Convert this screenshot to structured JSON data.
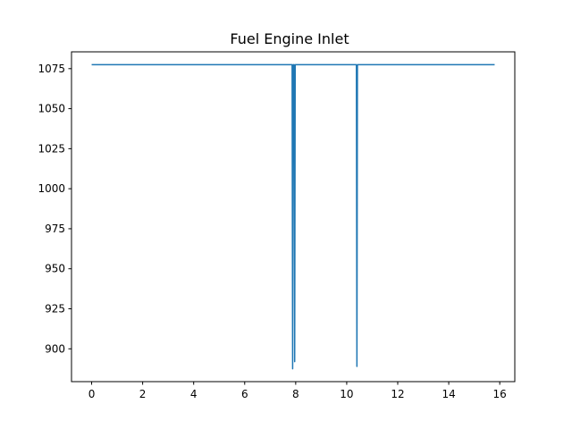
{
  "chart_data": {
    "type": "line",
    "title": "Fuel Engine Inlet",
    "xlabel": "",
    "ylabel": "",
    "xlim": [
      -0.79,
      16.59
    ],
    "ylim": [
      879.5,
      1085.5
    ],
    "x_ticks": [
      0,
      2,
      4,
      6,
      8,
      10,
      12,
      14,
      16
    ],
    "y_ticks": [
      900,
      925,
      950,
      975,
      1000,
      1025,
      1050,
      1075
    ],
    "grid": false,
    "legend": "none",
    "series": [
      {
        "color": "#1f77b4",
        "points": [
          [
            0.0,
            1077.5
          ],
          [
            7.86,
            1077.5
          ],
          [
            7.88,
            887.5
          ],
          [
            7.9,
            1077.5
          ],
          [
            7.94,
            1077.5
          ],
          [
            7.96,
            892.0
          ],
          [
            7.98,
            1077.5
          ],
          [
            10.38,
            1077.5
          ],
          [
            10.4,
            889.0
          ],
          [
            10.42,
            1077.5
          ],
          [
            15.8,
            1077.5
          ]
        ]
      }
    ]
  }
}
